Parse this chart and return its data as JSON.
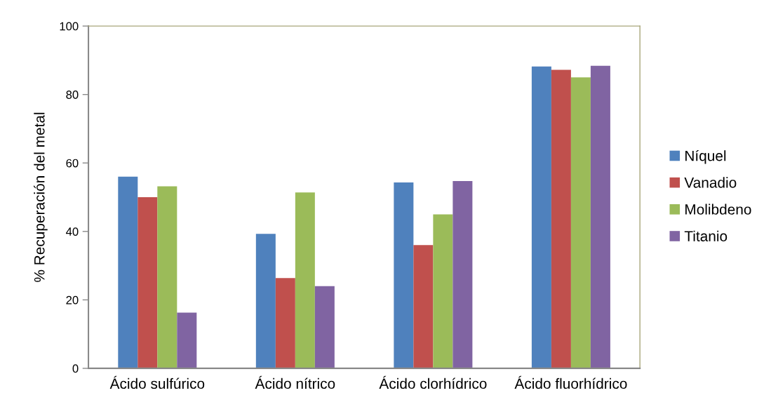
{
  "chart_data": {
    "type": "bar",
    "ylabel": "% Recuperación del metal",
    "categories": [
      "Ácido sulfúrico",
      "Ácido nítrico",
      "Ácido clorhídrico",
      "Ácido fluorhídrico"
    ],
    "series": [
      {
        "name": "Níquel",
        "color": "#4f81bd",
        "values": [
          56,
          39.3,
          54.3,
          88.2
        ]
      },
      {
        "name": "Vanadio",
        "color": "#c0504d",
        "values": [
          50,
          26.4,
          36,
          87.2
        ]
      },
      {
        "name": "Molibdeno",
        "color": "#9bbb59",
        "values": [
          53.2,
          51.4,
          45,
          85
        ]
      },
      {
        "name": "Titanio",
        "color": "#8064a2",
        "values": [
          16.3,
          24,
          54.7,
          88.4
        ]
      }
    ],
    "ylim": [
      0,
      100
    ],
    "yticks": [
      0,
      20,
      40,
      60,
      80,
      100
    ],
    "grid": false,
    "legend": "right"
  }
}
